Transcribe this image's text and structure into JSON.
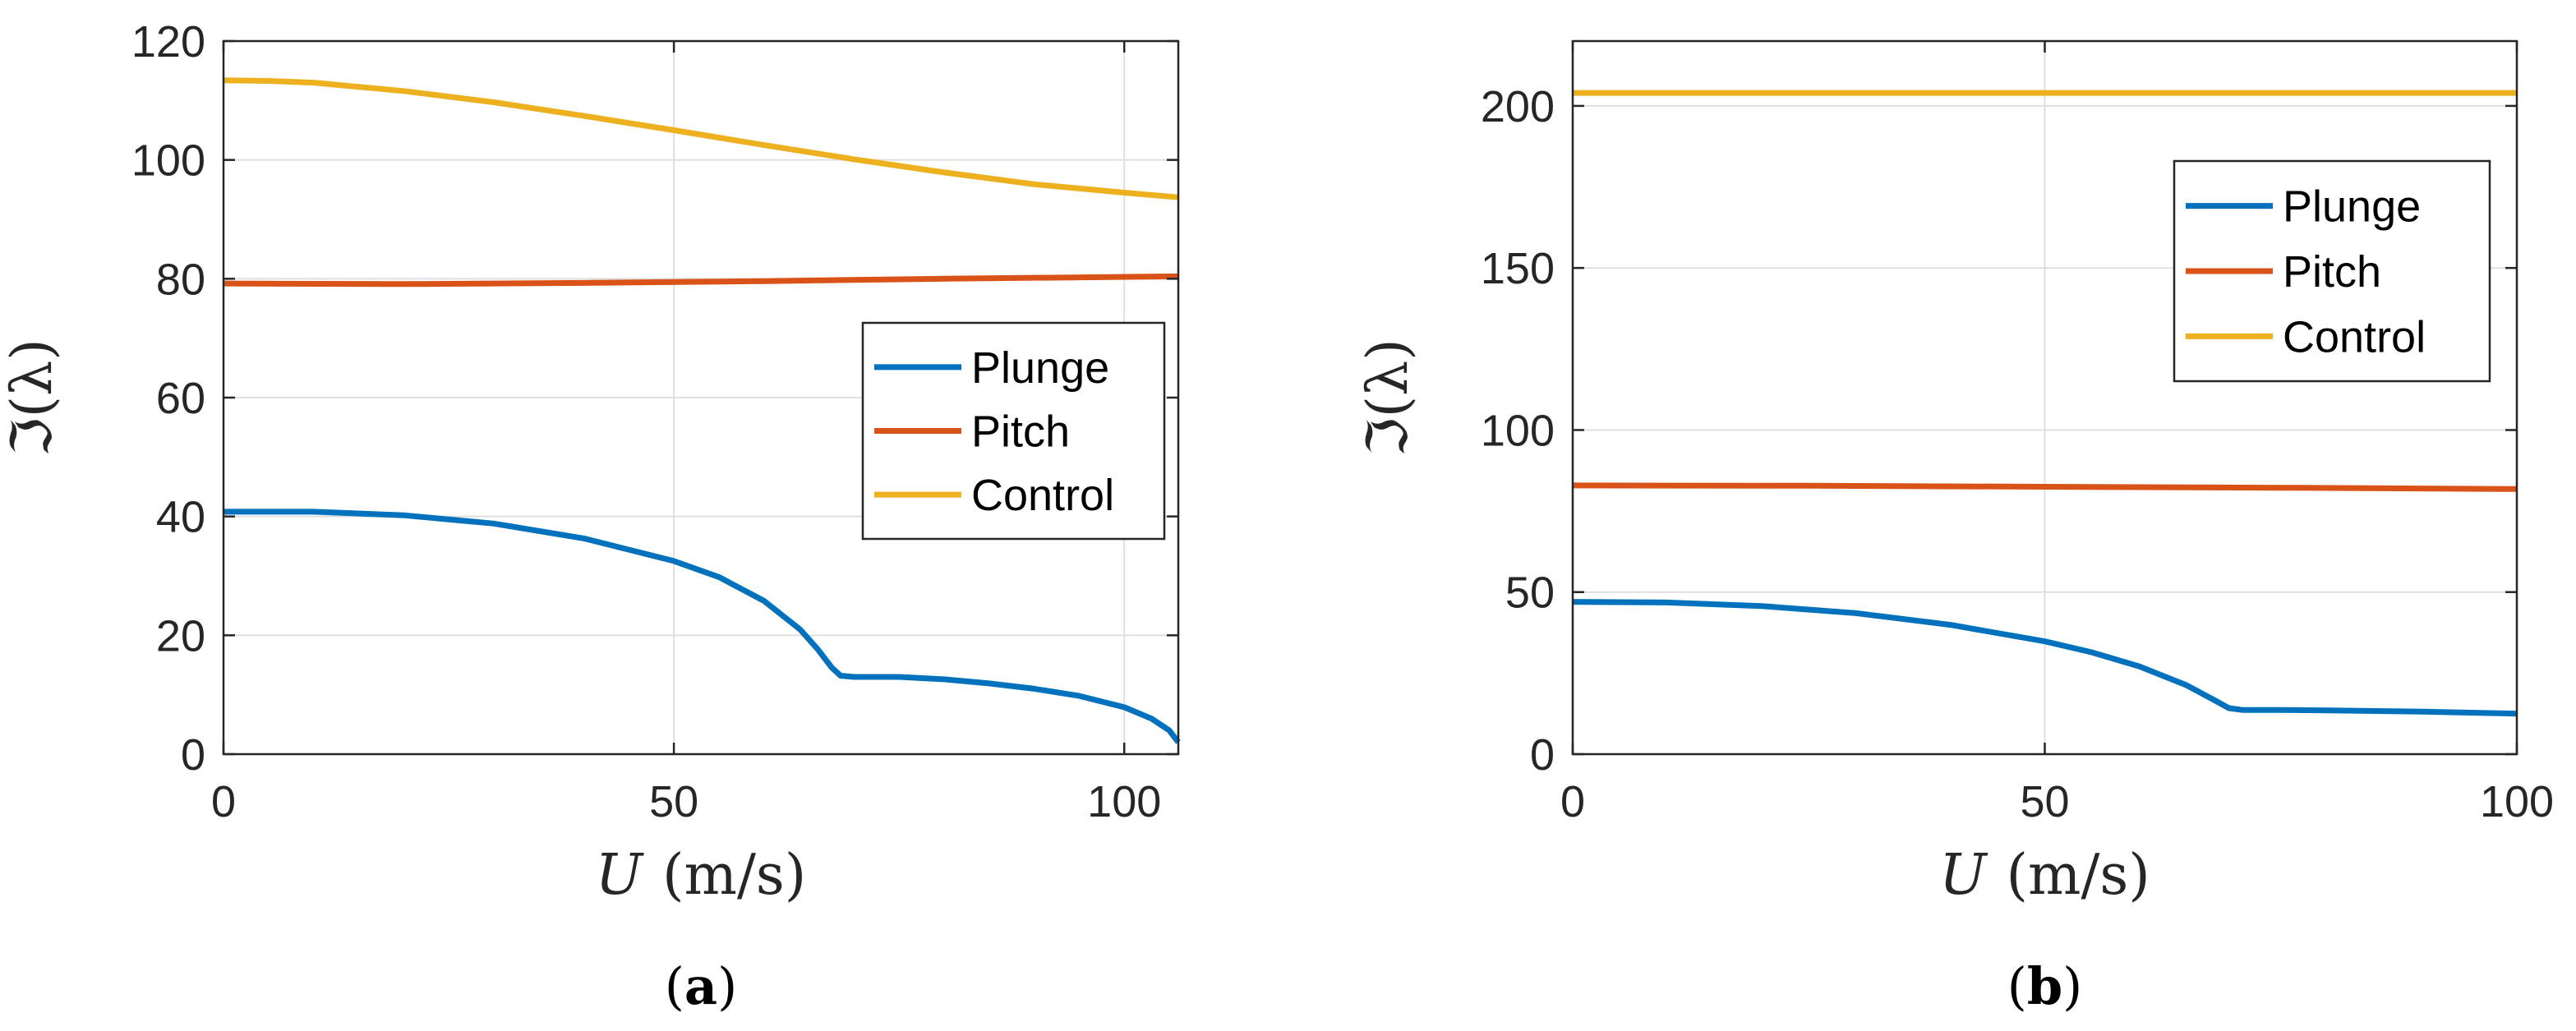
{
  "figure": {
    "captions": [
      "(a)",
      "(b)"
    ]
  },
  "chart_data": [
    {
      "type": "line",
      "panel": "a",
      "caption": "(a)",
      "xlabel_var": "U",
      "xlabel_unit": "(m/s)",
      "ylabel": "ℑ(λ)",
      "xlim": [
        0,
        106
      ],
      "ylim": [
        0,
        120
      ],
      "xticks": [
        0,
        50,
        100
      ],
      "yticks": [
        0,
        20,
        40,
        60,
        80,
        100,
        120
      ],
      "grid": true,
      "legend_position": "center-right",
      "series": [
        {
          "name": "Plunge",
          "color": "#0072BD",
          "x": [
            0,
            10,
            20,
            30,
            40,
            50,
            55,
            60,
            64,
            66,
            67.5,
            68.5,
            70,
            75,
            80,
            85,
            90,
            95,
            100,
            103,
            105,
            106
          ],
          "y": [
            40.8,
            40.8,
            40.2,
            38.8,
            36.3,
            32.5,
            29.8,
            25.8,
            21.0,
            17.6,
            14.6,
            13.2,
            13.0,
            13.0,
            12.6,
            11.9,
            11.0,
            9.8,
            7.9,
            6.0,
            4.0,
            2.0
          ]
        },
        {
          "name": "Pitch",
          "color": "#D95319",
          "x": [
            0,
            20,
            40,
            60,
            80,
            106
          ],
          "y": [
            79.2,
            79.1,
            79.3,
            79.6,
            80.0,
            80.4
          ]
        },
        {
          "name": "Control",
          "color": "#EDB120",
          "x": [
            0,
            5,
            10,
            20,
            30,
            40,
            50,
            60,
            70,
            80,
            90,
            100,
            106
          ],
          "y": [
            113.4,
            113.3,
            113.0,
            111.6,
            109.7,
            107.4,
            105.0,
            102.5,
            100.1,
            97.9,
            95.9,
            94.5,
            93.7
          ]
        }
      ]
    },
    {
      "type": "line",
      "panel": "b",
      "caption": "(b)",
      "xlabel_var": "U",
      "xlabel_unit": "(m/s)",
      "ylabel": "ℑ(λ)",
      "xlim": [
        0,
        100
      ],
      "ylim": [
        0,
        220
      ],
      "xticks": [
        0,
        50,
        100
      ],
      "yticks": [
        0,
        50,
        100,
        150,
        200
      ],
      "grid": true,
      "legend_position": "top-right",
      "series": [
        {
          "name": "Plunge",
          "color": "#0072BD",
          "x": [
            0,
            10,
            20,
            30,
            40,
            50,
            55,
            60,
            65,
            68,
            69.5,
            71,
            75,
            80,
            85,
            90,
            95,
            100
          ],
          "y": [
            47.0,
            46.8,
            45.7,
            43.5,
            39.9,
            34.8,
            31.4,
            27.1,
            21.3,
            16.6,
            14.2,
            13.6,
            13.6,
            13.5,
            13.3,
            13.1,
            12.8,
            12.5
          ]
        },
        {
          "name": "Pitch",
          "color": "#D95319",
          "x": [
            0,
            25,
            50,
            75,
            100
          ],
          "y": [
            82.9,
            82.8,
            82.5,
            82.2,
            81.8
          ]
        },
        {
          "name": "Control",
          "color": "#EDB120",
          "x": [
            0,
            50,
            100
          ],
          "y": [
            204.0,
            204.0,
            204.0
          ]
        }
      ]
    }
  ]
}
